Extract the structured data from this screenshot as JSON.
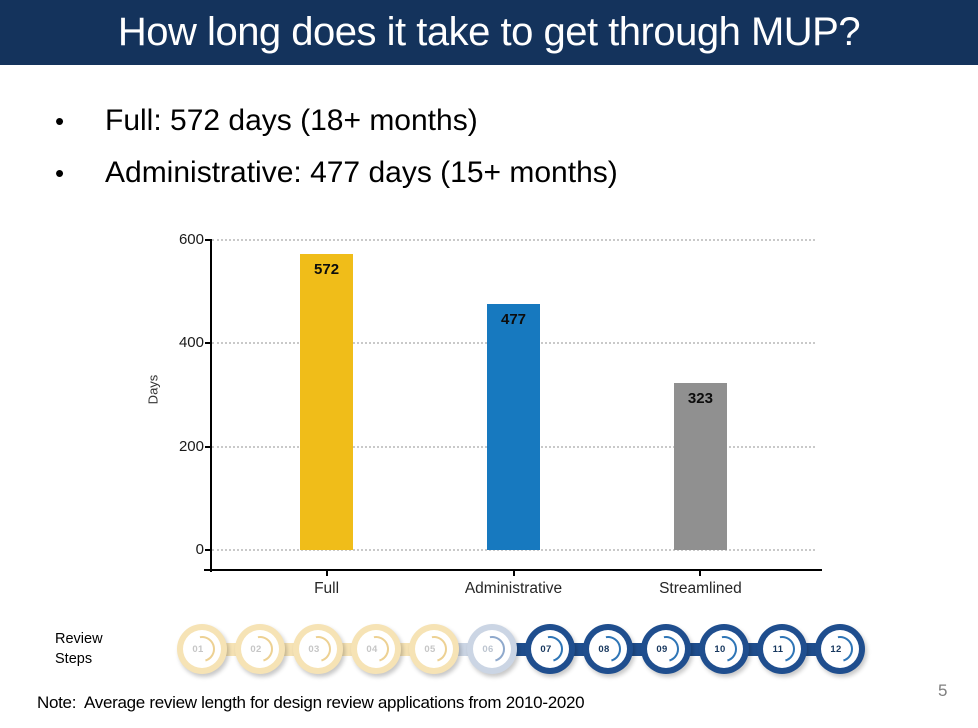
{
  "slide": {
    "title": "How long does it take to get through MUP?",
    "bullets": [
      "Full: 572 days (18+ months)",
      "Administrative: 477 days (15+ months)"
    ],
    "note": "Note:  Average review length for design review applications from 2010-2020",
    "page_number": "5",
    "header_bg": "#14335C"
  },
  "chart_data": {
    "type": "bar",
    "title": "",
    "categories": [
      "Full",
      "Administrative",
      "Streamlined"
    ],
    "values": [
      572,
      477,
      323
    ],
    "value_labels": [
      "572",
      "477",
      "323"
    ],
    "bar_colors": [
      "#F0BD19",
      "#1779BF",
      "#909090"
    ],
    "xlabel": "",
    "ylabel": "Days",
    "yticks": [
      0,
      200,
      400,
      600
    ],
    "ylim": [
      0,
      600
    ],
    "grid": "horizontal-dotted",
    "legend": "none"
  },
  "review_steps": {
    "label_line1": "Review",
    "label_line2": "Steps",
    "steps": [
      {
        "num": "01",
        "state": "yellow"
      },
      {
        "num": "02",
        "state": "yellow"
      },
      {
        "num": "03",
        "state": "yellow"
      },
      {
        "num": "04",
        "state": "yellow"
      },
      {
        "num": "05",
        "state": "yellow"
      },
      {
        "num": "06",
        "state": "lightblue"
      },
      {
        "num": "07",
        "state": "navy"
      },
      {
        "num": "08",
        "state": "navy"
      },
      {
        "num": "09",
        "state": "navy"
      },
      {
        "num": "10",
        "state": "navy"
      },
      {
        "num": "11",
        "state": "navy"
      },
      {
        "num": "12",
        "state": "navy"
      }
    ],
    "state_colors": {
      "yellow": {
        "ring": "#F6E3B5",
        "num": "#C6C6C6",
        "arc": "#EDD193"
      },
      "lightblue": {
        "ring": "#CBD5E4",
        "num": "#BDC5D0",
        "arc": "#8FA9CC"
      },
      "navy": {
        "ring": "#1F4E8E",
        "num": "#17375E",
        "arc": "#2E75B6"
      }
    }
  }
}
